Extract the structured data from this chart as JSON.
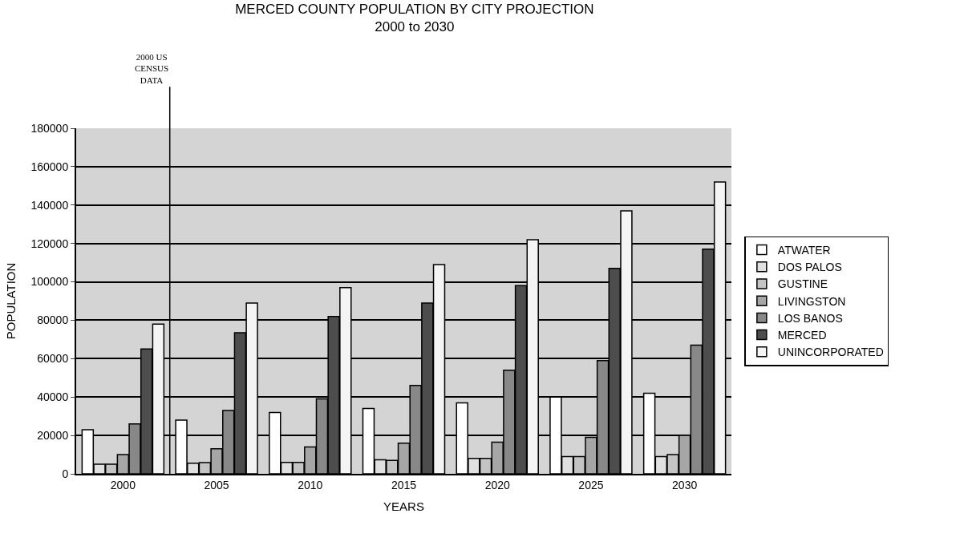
{
  "chart_data": {
    "type": "bar",
    "title": "MERCED COUNTY POPULATION BY CITY PROJECTION",
    "subtitle": "2000 to 2030",
    "xlabel": "YEARS",
    "ylabel": "POPULATION",
    "x": [
      2000,
      2005,
      2010,
      2015,
      2020,
      2025,
      2030
    ],
    "series": [
      {
        "name": "ATWATER",
        "color": "#ffffff",
        "values": [
          23000,
          28000,
          32000,
          34000,
          37000,
          40000,
          42000
        ]
      },
      {
        "name": "DOS PALOS",
        "color": "#e0e0e0",
        "values": [
          5000,
          5500,
          6000,
          7300,
          8000,
          9000,
          9000
        ]
      },
      {
        "name": "GUSTINE",
        "color": "#c4c4c4",
        "values": [
          5000,
          5800,
          6000,
          7000,
          8000,
          9000,
          10000
        ]
      },
      {
        "name": "LIVINGSTON",
        "color": "#a6a6a6",
        "values": [
          10000,
          13000,
          14000,
          16000,
          16500,
          19000,
          20000
        ]
      },
      {
        "name": "LOS BANOS",
        "color": "#888888",
        "values": [
          26000,
          33000,
          39000,
          46000,
          54000,
          59000,
          67000
        ]
      },
      {
        "name": "MERCED",
        "color": "#4d4d4d",
        "values": [
          65000,
          73500,
          82000,
          89000,
          98000,
          107000,
          117000
        ]
      },
      {
        "name": "UNINCORPORATED",
        "color": "#f4f4f4",
        "values": [
          78000,
          89000,
          97000,
          109000,
          122000,
          137000,
          152000
        ]
      }
    ],
    "xlim": [
      1997.5,
      2032.5
    ],
    "xticks": [
      2000,
      2005,
      2010,
      2015,
      2020,
      2025,
      2030
    ],
    "ylim": [
      0,
      180000
    ],
    "yticks": [
      0,
      20000,
      40000,
      60000,
      80000,
      100000,
      120000,
      140000,
      160000,
      180000
    ],
    "ref_lines": [
      {
        "axis": "x",
        "value": 2002.5,
        "label": "2000 US\nCENSUS\nDATA",
        "color": "#000000"
      }
    ],
    "grid": "y",
    "legend": "right"
  }
}
